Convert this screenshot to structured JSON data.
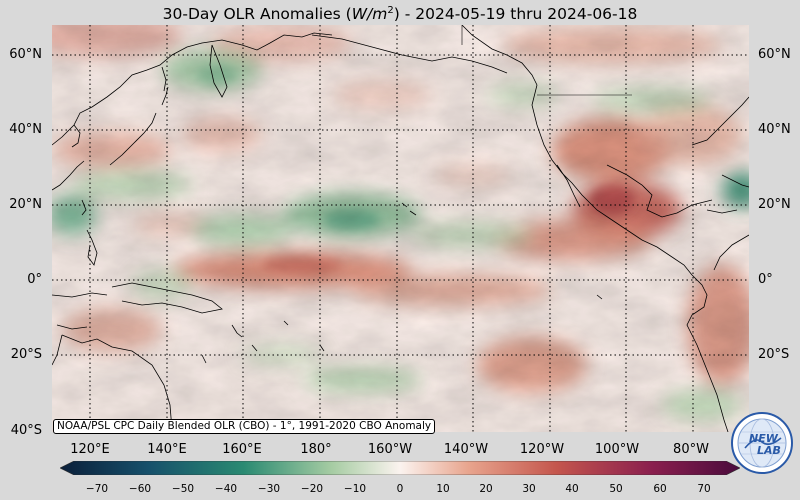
{
  "title": {
    "prefix": "30-Day OLR Anomalies (",
    "unit_base": "W/m",
    "unit_exp": "2",
    "suffix": ") - 2024-05-19 thru 2024-06-18"
  },
  "map": {
    "lat_labels": [
      "60°N",
      "40°N",
      "20°N",
      "0°",
      "20°S",
      "40°S"
    ],
    "lon_labels": [
      "120°E",
      "140°E",
      "160°E",
      "180°",
      "160°W",
      "140°W",
      "120°W",
      "100°W",
      "80°W"
    ],
    "gridlines": "dotted",
    "extent": {
      "lon_min": 108,
      "lon_max": 290,
      "lat_min": -41,
      "lat_max": 68
    }
  },
  "source_note": "NOAA/PSL CPC Daily Blended OLR (CBO) - 1°, 1991-2020 CBO Anomaly",
  "colorbar": {
    "ticks": [
      "−70",
      "−60",
      "−50",
      "−40",
      "−30",
      "−20",
      "−10",
      "0",
      "10",
      "20",
      "30",
      "40",
      "50",
      "60",
      "70"
    ],
    "range": [
      -75,
      75
    ],
    "colors": {
      "strong_negative": "#0b1f3a",
      "negative": "#2a8a72",
      "weak_negative": "#a6cca3",
      "neutral": "#fbf3ef",
      "weak_positive": "#e8a58e",
      "positive": "#c4564d",
      "strong_positive": "#4a0b3c"
    }
  },
  "logo": {
    "text_top": "NEW",
    "text_bottom": "LAB"
  }
}
